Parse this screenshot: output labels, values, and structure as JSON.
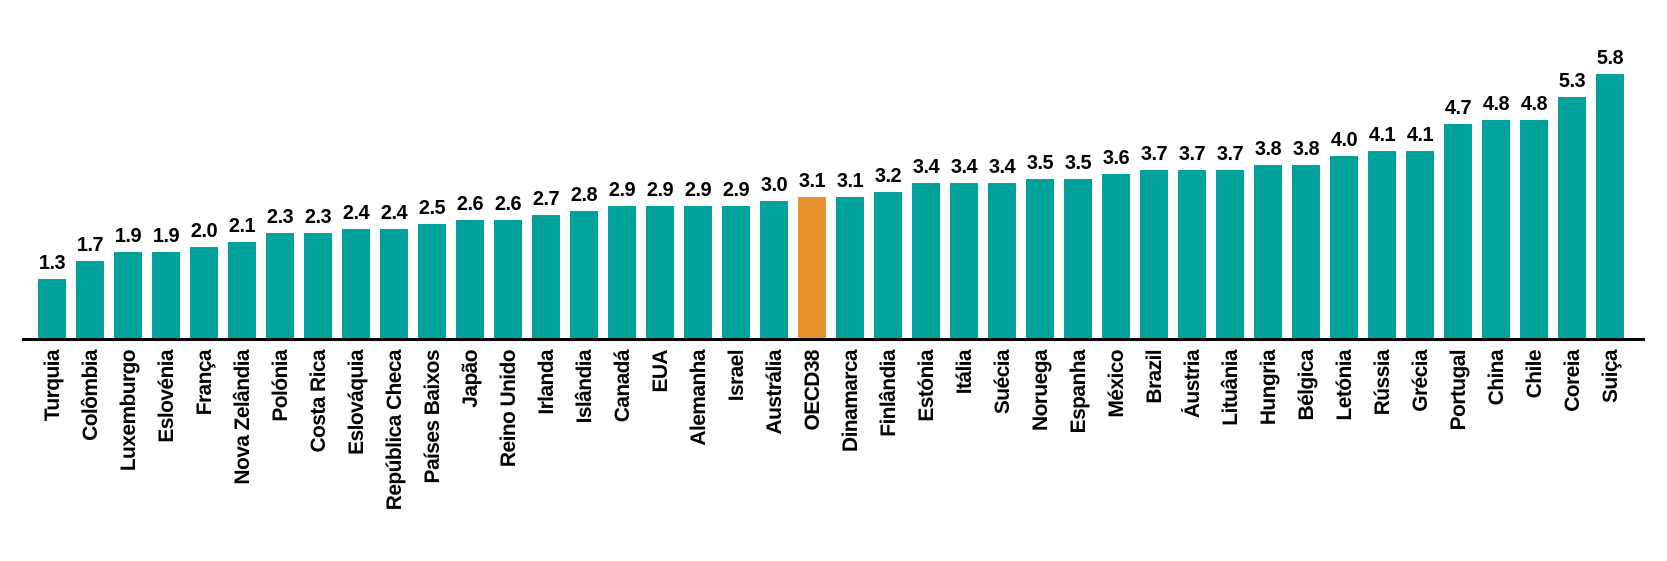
{
  "colors": {
    "bar": "#00A29B",
    "highlight_bar": "#E8912D",
    "axis": "#000000",
    "text": "#000000",
    "background": "#FFFFFF"
  },
  "chart_data": {
    "type": "bar",
    "orientation": "vertical",
    "title": "",
    "xlabel": "",
    "ylabel": "",
    "grid": false,
    "legend": false,
    "y_axis_visible": false,
    "ylim": [
      0,
      6.2
    ],
    "highlight_category": "OECD38",
    "categories": [
      "Turquia",
      "Colômbia",
      "Luxemburgo",
      "Eslovénia",
      "França",
      "Nova Zelândia",
      "Polónia",
      "Costa Rica",
      "Eslováquia",
      "República Checa",
      "Países Baixos",
      "Japão",
      "Reino Unido",
      "Irlanda",
      "Islândia",
      "Canadá",
      "EUA",
      "Alemanha",
      "Israel",
      "Austrália",
      "OECD38",
      "Dinamarca",
      "Finlândia",
      "Estónia",
      "Itália",
      "Suécia",
      "Noruega",
      "Espanha",
      "México",
      "Brazil",
      "Áustria",
      "Lituânia",
      "Hungria",
      "Bélgica",
      "Letónia",
      "Rússia",
      "Grécia",
      "Portugal",
      "China",
      "Chile",
      "Coreia",
      "Suiça"
    ],
    "values": [
      1.3,
      1.7,
      1.9,
      1.9,
      2.0,
      2.1,
      2.3,
      2.3,
      2.4,
      2.4,
      2.5,
      2.6,
      2.6,
      2.7,
      2.8,
      2.9,
      2.9,
      2.9,
      2.9,
      3.0,
      3.1,
      3.1,
      3.2,
      3.4,
      3.4,
      3.4,
      3.5,
      3.5,
      3.6,
      3.7,
      3.7,
      3.7,
      3.8,
      3.8,
      4.0,
      4.1,
      4.1,
      4.7,
      4.8,
      4.8,
      5.3,
      5.8
    ],
    "value_labels": [
      "1.3",
      "1.7",
      "1.9",
      "1.9",
      "2.0",
      "2.1",
      "2.3",
      "2.3",
      "2.4",
      "2.4",
      "2.5",
      "2.6",
      "2.6",
      "2.7",
      "2.8",
      "2.9",
      "2.9",
      "2.9",
      "2.9",
      "3.0",
      "3.1",
      "3.1",
      "3.2",
      "3.4",
      "3.4",
      "3.4",
      "3.5",
      "3.5",
      "3.6",
      "3.7",
      "3.7",
      "3.7",
      "3.8",
      "3.8",
      "4.0",
      "4.1",
      "4.1",
      "4.7",
      "4.8",
      "4.8",
      "5.3",
      "5.8"
    ]
  }
}
